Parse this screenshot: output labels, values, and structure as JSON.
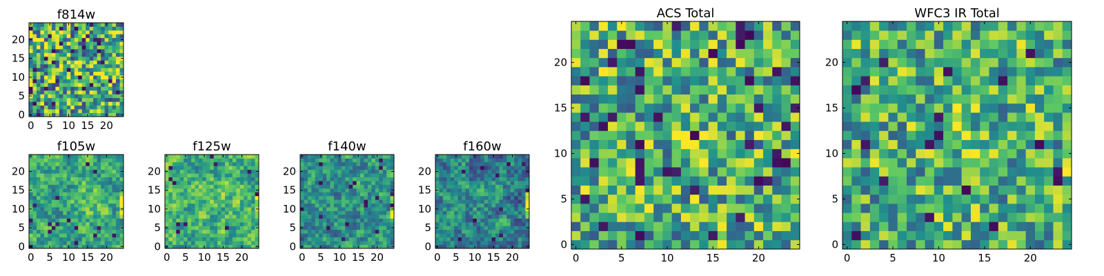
{
  "figure": {
    "colormap": "viridis",
    "colormap_stops": [
      "#440154",
      "#3b528b",
      "#21908d",
      "#5dc863",
      "#fde725"
    ]
  },
  "chart_data": [
    {
      "id": "f814w",
      "type": "heatmap",
      "title": "f814w",
      "grid": [
        25,
        25
      ],
      "xticks": [
        0,
        5,
        10,
        15,
        20
      ],
      "yticks": [
        0,
        5,
        10,
        15,
        20
      ],
      "xlim": [
        -0.5,
        24.5
      ],
      "ylim": [
        -0.5,
        24.5
      ],
      "value_range": [
        0,
        1
      ],
      "seed": 11,
      "smooth": 0,
      "base": 0.62,
      "noise": 0.42,
      "dark_prob": 0.06,
      "bright_center": [
        13,
        11
      ],
      "bright_radius": 6,
      "bright_boost": 0.12,
      "right_edge_boost": 0.1
    },
    {
      "id": "f105w",
      "type": "heatmap",
      "title": "f105w",
      "grid": [
        25,
        25
      ],
      "xticks": [
        0,
        5,
        10,
        15,
        20
      ],
      "yticks": [
        0,
        5,
        10,
        15,
        20
      ],
      "xlim": [
        -0.5,
        24.5
      ],
      "ylim": [
        -0.5,
        24.5
      ],
      "value_range": [
        0,
        1
      ],
      "seed": 23,
      "smooth": 1,
      "base": 0.6,
      "noise": 0.4,
      "dark_prob": 0.02,
      "bright_center": [
        15,
        12
      ],
      "bright_radius": 7,
      "bright_boost": 0.16,
      "right_edge_boost": 0.35
    },
    {
      "id": "f125w",
      "type": "heatmap",
      "title": "f125w",
      "grid": [
        25,
        25
      ],
      "xticks": [
        0,
        5,
        10,
        15,
        20
      ],
      "yticks": [
        0,
        5,
        10,
        15,
        20
      ],
      "xlim": [
        -0.5,
        24.5
      ],
      "ylim": [
        -0.5,
        24.5
      ],
      "value_range": [
        0,
        1
      ],
      "seed": 37,
      "smooth": 1,
      "base": 0.64,
      "noise": 0.4,
      "dark_prob": 0.02,
      "bright_center": [
        14,
        13
      ],
      "bright_radius": 7,
      "bright_boost": 0.1,
      "right_edge_boost": 0.35
    },
    {
      "id": "f140w",
      "type": "heatmap",
      "title": "f140w",
      "grid": [
        25,
        25
      ],
      "xticks": [
        0,
        5,
        10,
        15,
        20
      ],
      "yticks": [
        0,
        5,
        10,
        15,
        20
      ],
      "xlim": [
        -0.5,
        24.5
      ],
      "ylim": [
        -0.5,
        24.5
      ],
      "value_range": [
        0,
        1
      ],
      "seed": 41,
      "smooth": 1,
      "base": 0.5,
      "noise": 0.4,
      "dark_prob": 0.02,
      "bright_center": [
        15,
        14
      ],
      "bright_radius": 6,
      "bright_boost": 0.08,
      "right_edge_boost": 0.45
    },
    {
      "id": "f160w",
      "type": "heatmap",
      "title": "f160w",
      "grid": [
        25,
        25
      ],
      "xticks": [
        0,
        5,
        10,
        15,
        20
      ],
      "yticks": [
        0,
        5,
        10,
        15,
        20
      ],
      "xlim": [
        -0.5,
        24.5
      ],
      "ylim": [
        -0.5,
        24.5
      ],
      "value_range": [
        0,
        1
      ],
      "seed": 53,
      "smooth": 1,
      "base": 0.45,
      "noise": 0.4,
      "dark_prob": 0.02,
      "bright_center": [
        14,
        14
      ],
      "bright_radius": 6,
      "bright_boost": 0.08,
      "right_edge_boost": 0.5
    },
    {
      "id": "acs-total",
      "type": "heatmap",
      "title": "ACS Total",
      "grid": [
        25,
        25
      ],
      "xticks": [
        0,
        5,
        10,
        15,
        20
      ],
      "yticks": [
        0,
        5,
        10,
        15,
        20
      ],
      "xlim": [
        -0.5,
        24.5
      ],
      "ylim": [
        -0.5,
        24.5
      ],
      "value_range": [
        0,
        1
      ],
      "seed": 67,
      "smooth": 0,
      "base": 0.64,
      "noise": 0.36,
      "dark_prob": 0.045,
      "bright_center": [
        13,
        12
      ],
      "bright_radius": 4,
      "bright_boost": 0.15,
      "right_edge_boost": 0.12
    },
    {
      "id": "wfc3-ir-total",
      "type": "heatmap",
      "title": "WFC3 IR Total",
      "grid": [
        25,
        25
      ],
      "xticks": [
        0,
        5,
        10,
        15,
        20
      ],
      "yticks": [
        0,
        5,
        10,
        15,
        20
      ],
      "xlim": [
        -0.5,
        24.5
      ],
      "ylim": [
        -0.5,
        24.5
      ],
      "value_range": [
        0,
        1
      ],
      "seed": 79,
      "smooth": 0,
      "base": 0.64,
      "noise": 0.34,
      "dark_prob": 0.04,
      "bright_center": [
        13,
        12
      ],
      "bright_radius": 5,
      "bright_boost": 0.12,
      "right_edge_boost": 0.2
    }
  ]
}
